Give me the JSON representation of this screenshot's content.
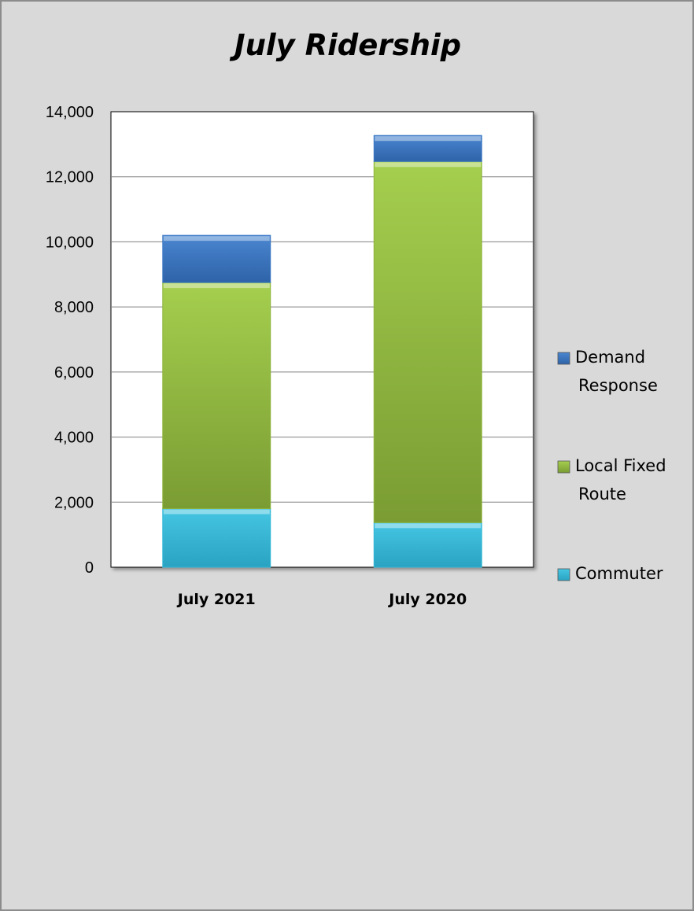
{
  "chart_data": {
    "type": "bar",
    "stacked": true,
    "title": "July Ridership",
    "categories": [
      "July 2021",
      "July 2020"
    ],
    "series": [
      {
        "name": "Commuter",
        "values": [
          1800,
          1370
        ],
        "color": "#31b7d6"
      },
      {
        "name": "Local Fixed Route",
        "values": [
          6950,
          11100
        ],
        "color": "#8db43c"
      },
      {
        "name": "Demand Response",
        "values": [
          1450,
          800
        ],
        "color": "#3b78c4"
      }
    ],
    "ylim": [
      0,
      14000
    ],
    "yticks": [
      "0",
      "2,000",
      "4,000",
      "6,000",
      "8,000",
      "10,000",
      "12,000",
      "14,000"
    ],
    "ytick_values": [
      0,
      2000,
      4000,
      6000,
      8000,
      10000,
      12000,
      14000
    ],
    "grid": true,
    "legend_position": "right",
    "legend": [
      {
        "series": "Demand Response",
        "lines": [
          "Demand",
          "Response"
        ]
      },
      {
        "series": "Local Fixed Route",
        "lines": [
          "Local Fixed",
          "Route"
        ]
      },
      {
        "series": "Commuter",
        "lines": [
          "Commuter"
        ]
      }
    ]
  }
}
